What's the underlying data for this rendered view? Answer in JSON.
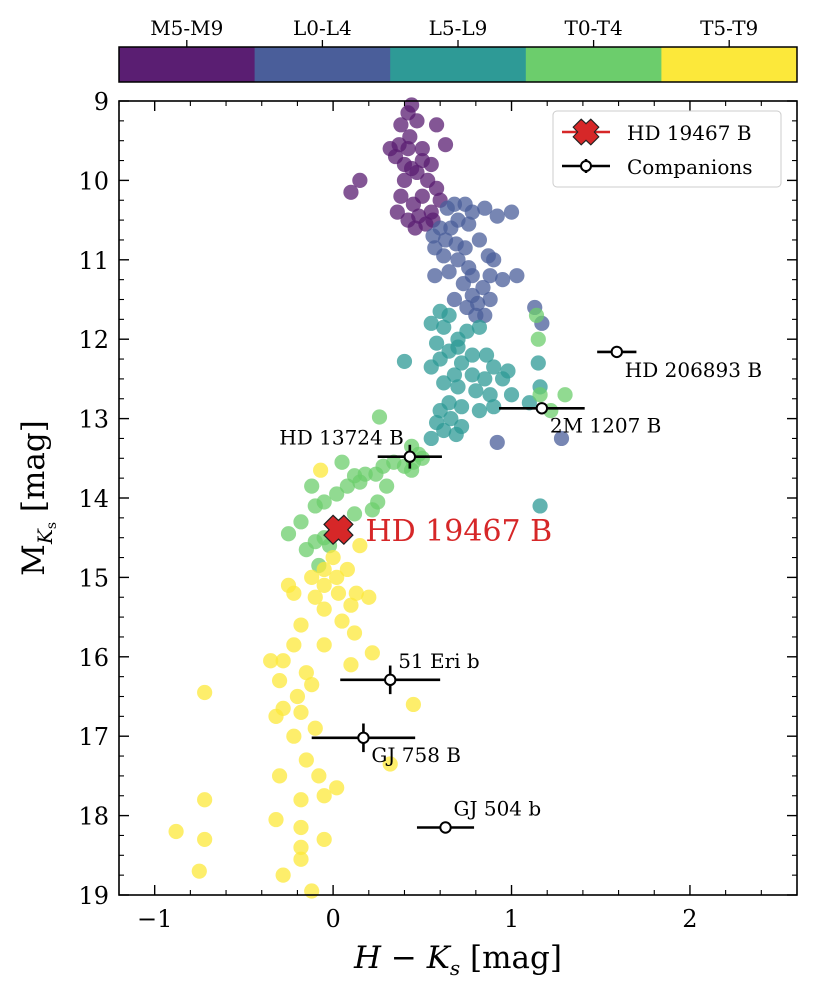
{
  "chart_data": {
    "type": "scatter",
    "xlabel_main": "H − K",
    "xlabel_sub": "s",
    "xlabel_unit": " [mag]",
    "ylabel_main": "M",
    "ylabel_sub": "K",
    "ylabel_subsub": "s",
    "ylabel_unit": " [mag]",
    "xlim": [
      -1.2,
      2.6
    ],
    "ylim": [
      9,
      19
    ],
    "y_inverted": true,
    "x_ticks": [
      -1,
      0,
      1,
      2
    ],
    "x_tick_labels": [
      "−1",
      "0",
      "1",
      "2"
    ],
    "y_ticks": [
      9,
      10,
      11,
      12,
      13,
      14,
      15,
      16,
      17,
      18,
      19
    ],
    "y_tick_labels": [
      "9",
      "10",
      "11",
      "12",
      "13",
      "14",
      "15",
      "16",
      "17",
      "18",
      "19"
    ],
    "colorbar": {
      "labels": [
        "M5-M9",
        "L0-L4",
        "L5-L9",
        "T0-T4",
        "T5-T9"
      ],
      "colors": [
        "#5a1e72",
        "#4a5e9a",
        "#2e9a96",
        "#6ccd6c",
        "#fce83a"
      ]
    },
    "series": [
      {
        "name": "M5-M9",
        "color": "#5a1e72",
        "points": [
          [
            0.42,
            9.15
          ],
          [
            0.44,
            9.05
          ],
          [
            0.47,
            9.25
          ],
          [
            0.38,
            9.3
          ],
          [
            0.43,
            9.45
          ],
          [
            0.37,
            9.55
          ],
          [
            0.42,
            9.6
          ],
          [
            0.5,
            9.6
          ],
          [
            0.58,
            9.3
          ],
          [
            0.63,
            9.55
          ],
          [
            0.32,
            9.6
          ],
          [
            0.35,
            9.7
          ],
          [
            0.4,
            9.8
          ],
          [
            0.44,
            9.85
          ],
          [
            0.5,
            9.75
          ],
          [
            0.55,
            9.8
          ],
          [
            0.47,
            9.9
          ],
          [
            0.53,
            10.0
          ],
          [
            0.4,
            10.0
          ],
          [
            0.38,
            10.2
          ],
          [
            0.45,
            10.3
          ],
          [
            0.58,
            10.1
          ],
          [
            0.6,
            10.25
          ],
          [
            0.5,
            10.2
          ],
          [
            0.55,
            10.4
          ],
          [
            0.48,
            10.45
          ],
          [
            0.42,
            10.5
          ],
          [
            0.36,
            10.4
          ],
          [
            0.52,
            10.55
          ],
          [
            0.56,
            10.5
          ],
          [
            0.46,
            10.6
          ],
          [
            0.15,
            10.0
          ],
          [
            0.1,
            10.15
          ]
        ]
      },
      {
        "name": "L0-L4",
        "color": "#4a5e9a",
        "points": [
          [
            0.64,
            10.35
          ],
          [
            0.68,
            10.3
          ],
          [
            0.74,
            10.3
          ],
          [
            0.78,
            10.4
          ],
          [
            0.85,
            10.35
          ],
          [
            0.92,
            10.45
          ],
          [
            1.0,
            10.4
          ],
          [
            0.7,
            10.5
          ],
          [
            0.66,
            10.6
          ],
          [
            0.76,
            10.55
          ],
          [
            0.6,
            10.6
          ],
          [
            0.56,
            10.7
          ],
          [
            0.63,
            10.75
          ],
          [
            0.69,
            10.8
          ],
          [
            0.74,
            10.85
          ],
          [
            0.82,
            10.75
          ],
          [
            0.57,
            10.85
          ],
          [
            0.62,
            10.95
          ],
          [
            0.7,
            11.0
          ],
          [
            0.76,
            11.1
          ],
          [
            0.87,
            10.95
          ],
          [
            0.9,
            11.0
          ],
          [
            0.65,
            11.15
          ],
          [
            0.78,
            11.2
          ],
          [
            0.88,
            11.2
          ],
          [
            0.95,
            11.25
          ],
          [
            0.84,
            11.35
          ],
          [
            0.73,
            11.3
          ],
          [
            0.57,
            11.2
          ],
          [
            1.03,
            11.2
          ],
          [
            0.88,
            11.5
          ],
          [
            0.81,
            11.55
          ],
          [
            0.78,
            11.45
          ],
          [
            0.68,
            11.5
          ],
          [
            1.13,
            11.6
          ],
          [
            0.8,
            11.7
          ],
          [
            1.17,
            11.8
          ],
          [
            0.75,
            11.6
          ],
          [
            0.85,
            11.7
          ],
          [
            1.28,
            13.25
          ],
          [
            0.92,
            13.3
          ]
        ]
      },
      {
        "name": "L5-L9",
        "color": "#2e9a96",
        "points": [
          [
            0.6,
            11.65
          ],
          [
            0.65,
            11.7
          ],
          [
            0.55,
            11.8
          ],
          [
            0.62,
            11.85
          ],
          [
            0.75,
            11.9
          ],
          [
            0.82,
            11.85
          ],
          [
            0.7,
            12.0
          ],
          [
            0.58,
            12.05
          ],
          [
            0.65,
            12.15
          ],
          [
            0.7,
            12.1
          ],
          [
            0.78,
            12.2
          ],
          [
            0.86,
            12.2
          ],
          [
            0.6,
            12.25
          ],
          [
            0.72,
            12.3
          ],
          [
            0.55,
            12.35
          ],
          [
            0.4,
            12.28
          ],
          [
            0.9,
            12.35
          ],
          [
            0.68,
            12.45
          ],
          [
            0.78,
            12.45
          ],
          [
            0.85,
            12.5
          ],
          [
            0.95,
            12.5
          ],
          [
            0.62,
            12.55
          ],
          [
            0.7,
            12.6
          ],
          [
            0.8,
            12.65
          ],
          [
            0.88,
            12.7
          ],
          [
            1.0,
            12.7
          ],
          [
            0.65,
            12.8
          ],
          [
            0.72,
            12.85
          ],
          [
            0.82,
            12.9
          ],
          [
            0.9,
            12.85
          ],
          [
            0.6,
            12.9
          ],
          [
            0.66,
            13.0
          ],
          [
            0.58,
            13.05
          ],
          [
            0.72,
            13.1
          ],
          [
            0.62,
            13.15
          ],
          [
            0.69,
            13.2
          ],
          [
            0.55,
            13.25
          ],
          [
            1.1,
            12.8
          ],
          [
            1.16,
            12.6
          ],
          [
            1.16,
            14.1
          ],
          [
            1.15,
            12.3
          ],
          [
            0.98,
            12.4
          ]
        ]
      },
      {
        "name": "T0-T4",
        "color": "#6ccd6c",
        "points": [
          [
            1.14,
            11.7
          ],
          [
            1.15,
            12.0
          ],
          [
            1.22,
            12.9
          ],
          [
            1.16,
            12.7
          ],
          [
            1.3,
            12.7
          ],
          [
            0.26,
            12.98
          ],
          [
            0.44,
            13.35
          ],
          [
            0.45,
            13.55
          ],
          [
            0.48,
            13.45
          ],
          [
            0.5,
            13.5
          ],
          [
            0.4,
            13.6
          ],
          [
            0.34,
            13.55
          ],
          [
            0.28,
            13.6
          ],
          [
            0.24,
            13.7
          ],
          [
            0.18,
            13.7
          ],
          [
            0.12,
            13.72
          ],
          [
            0.05,
            13.55
          ],
          [
            0.3,
            13.85
          ],
          [
            0.15,
            13.8
          ],
          [
            0.08,
            13.85
          ],
          [
            0.02,
            13.95
          ],
          [
            -0.05,
            14.05
          ],
          [
            -0.12,
            13.85
          ],
          [
            0.25,
            14.05
          ],
          [
            0.12,
            14.2
          ],
          [
            -0.1,
            14.1
          ],
          [
            0.22,
            14.15
          ],
          [
            -0.18,
            14.3
          ],
          [
            -0.25,
            14.45
          ],
          [
            -0.1,
            14.55
          ],
          [
            -0.02,
            14.6
          ],
          [
            -0.15,
            14.65
          ],
          [
            -0.08,
            14.85
          ],
          [
            -0.05,
            14.5
          ],
          [
            0.44,
            13.65
          ],
          [
            0.05,
            14.35
          ]
        ]
      },
      {
        "name": "T5-T9",
        "color": "#fce83a",
        "points": [
          [
            -0.07,
            13.65
          ],
          [
            0.15,
            14.6
          ],
          [
            0.0,
            14.75
          ],
          [
            -0.05,
            14.9
          ],
          [
            0.08,
            14.9
          ],
          [
            0.02,
            15.0
          ],
          [
            -0.12,
            15.0
          ],
          [
            -0.05,
            15.1
          ],
          [
            0.03,
            15.2
          ],
          [
            0.1,
            15.35
          ],
          [
            -0.1,
            15.25
          ],
          [
            -0.22,
            15.2
          ],
          [
            -0.25,
            15.1
          ],
          [
            0.13,
            15.2
          ],
          [
            0.2,
            15.25
          ],
          [
            -0.05,
            15.4
          ],
          [
            0.05,
            15.55
          ],
          [
            0.12,
            15.7
          ],
          [
            -0.18,
            15.6
          ],
          [
            -0.05,
            15.85
          ],
          [
            -0.22,
            15.85
          ],
          [
            0.22,
            15.95
          ],
          [
            -0.28,
            16.05
          ],
          [
            -0.35,
            16.05
          ],
          [
            0.1,
            16.1
          ],
          [
            -0.15,
            16.2
          ],
          [
            -0.3,
            16.3
          ],
          [
            -0.12,
            16.35
          ],
          [
            -0.2,
            16.5
          ],
          [
            -0.72,
            16.45
          ],
          [
            -0.28,
            16.65
          ],
          [
            -0.18,
            16.7
          ],
          [
            -0.32,
            16.75
          ],
          [
            -0.1,
            16.9
          ],
          [
            -0.22,
            17.0
          ],
          [
            -0.15,
            17.3
          ],
          [
            -0.3,
            17.5
          ],
          [
            -0.08,
            17.5
          ],
          [
            0.32,
            17.35
          ],
          [
            0.45,
            16.6
          ],
          [
            -0.05,
            17.75
          ],
          [
            -0.18,
            17.8
          ],
          [
            0.02,
            17.65
          ],
          [
            -0.72,
            17.8
          ],
          [
            -0.32,
            18.05
          ],
          [
            -0.18,
            18.15
          ],
          [
            -0.05,
            18.3
          ],
          [
            -0.88,
            18.2
          ],
          [
            -0.72,
            18.3
          ],
          [
            -0.18,
            18.55
          ],
          [
            -0.75,
            18.7
          ],
          [
            -0.18,
            18.4
          ],
          [
            -0.28,
            18.75
          ],
          [
            -0.12,
            18.95
          ]
        ]
      }
    ],
    "companions": [
      {
        "name": "HD 206893 B",
        "x": 1.59,
        "y": 12.16,
        "xerr": 0.11,
        "yerr": 0.0
      },
      {
        "name": "2M 1207 B",
        "x": 1.17,
        "y": 12.87,
        "xerr": 0.24,
        "yerr": 0.0
      },
      {
        "name": "HD 13724 B",
        "x": 0.43,
        "y": 13.48,
        "xerr": 0.18,
        "yerr": 0.15
      },
      {
        "name": "51 Eri b",
        "x": 0.32,
        "y": 16.29,
        "xerr": 0.28,
        "yerr": 0.18
      },
      {
        "name": "GJ 758 B",
        "x": 0.17,
        "y": 17.02,
        "xerr": 0.29,
        "yerr": 0.18
      },
      {
        "name": "GJ 504 b",
        "x": 0.63,
        "y": 18.15,
        "xerr": 0.16,
        "yerr": 0.06
      }
    ],
    "target": {
      "name": "HD 19467 B",
      "x": 0.03,
      "y": 14.4,
      "color": "#d62728"
    },
    "legend": {
      "position": "top-right",
      "entries": [
        "HD 19467 B",
        "Companions"
      ]
    }
  }
}
